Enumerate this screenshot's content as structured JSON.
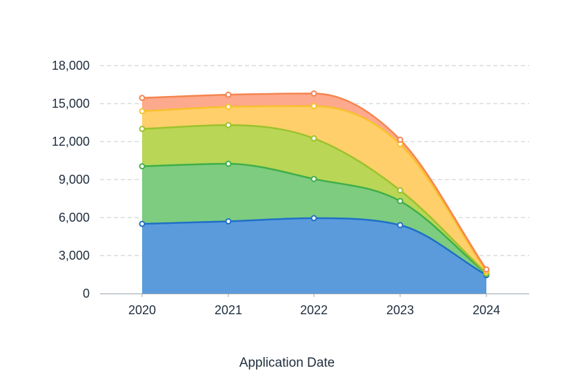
{
  "chart_data": {
    "type": "area",
    "stacked": true,
    "xlabel": "Application Date",
    "ylabel": "",
    "categories": [
      "2020",
      "2021",
      "2022",
      "2023",
      "2024"
    ],
    "ylim": [
      0,
      18000
    ],
    "yticks": [
      0,
      3000,
      6000,
      9000,
      12000,
      15000,
      18000
    ],
    "ytick_labels": [
      "0",
      "3,000",
      "6,000",
      "9,000",
      "12,000",
      "15,000",
      "18,000"
    ],
    "grid": true,
    "legend": "none",
    "series": [
      {
        "color": "#5b9bdc",
        "line": "#1f6fc7",
        "values": [
          5500,
          5700,
          5950,
          5400,
          1450
        ]
      },
      {
        "color": "#7dcc80",
        "line": "#3fae49",
        "values": [
          4550,
          4550,
          3100,
          1900,
          100
        ]
      },
      {
        "color": "#b9d656",
        "line": "#9cc22c",
        "values": [
          2950,
          3050,
          3200,
          850,
          50
        ]
      },
      {
        "color": "#fecf6a",
        "line": "#f8c12c",
        "values": [
          1400,
          1450,
          2550,
          3650,
          150
        ]
      },
      {
        "color": "#fca98d",
        "line": "#f5854f",
        "values": [
          1050,
          950,
          1000,
          350,
          150
        ]
      }
    ]
  }
}
